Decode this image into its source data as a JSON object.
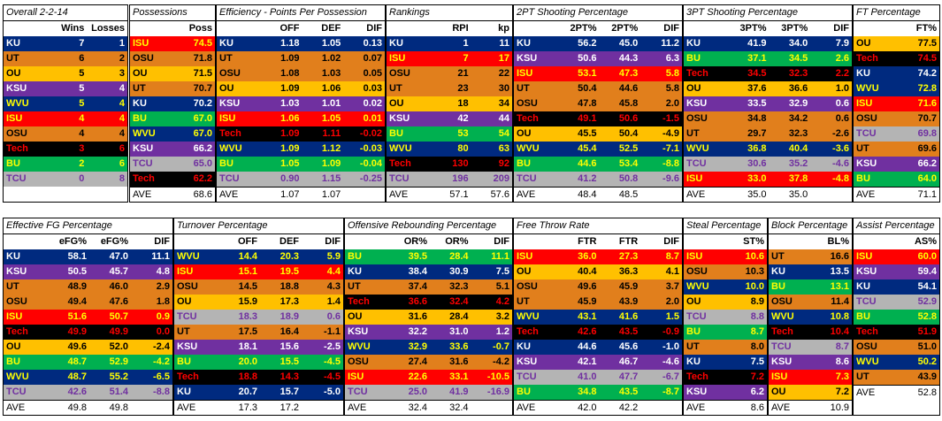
{
  "colors": {
    "KU": {
      "bg": "#002a7f",
      "fg": "#ffffff"
    },
    "UT": {
      "bg": "#e17f1c",
      "fg": "#000000"
    },
    "OU": {
      "bg": "#ffc000",
      "fg": "#000000"
    },
    "KSU": {
      "bg": "#7030a0",
      "fg": "#ffffff"
    },
    "WVU": {
      "bg": "#002a7f",
      "fg": "#ffff00"
    },
    "ISU": {
      "bg": "#ff0000",
      "fg": "#ffff00"
    },
    "OSU": {
      "bg": "#e17f1c",
      "fg": "#000000"
    },
    "Tech": {
      "bg": "#000000",
      "fg": "#ff0000"
    },
    "BU": {
      "bg": "#00b050",
      "fg": "#ffff00"
    },
    "TCU": {
      "bg": "#b4b4b4",
      "fg": "#7030a0"
    }
  },
  "tables": [
    {
      "id": "overall",
      "title": "Overall 2-2-14",
      "headers": [
        "",
        "Wins",
        "Losses"
      ],
      "rows": [
        [
          "KU",
          "7",
          "1"
        ],
        [
          "UT",
          "6",
          "2"
        ],
        [
          "OU",
          "5",
          "3"
        ],
        [
          "KSU",
          "5",
          "4"
        ],
        [
          "WVU",
          "5",
          "4"
        ],
        [
          "ISU",
          "4",
          "4"
        ],
        [
          "OSU",
          "4",
          "4"
        ],
        [
          "Tech",
          "3",
          "6"
        ],
        [
          "BU",
          "2",
          "6"
        ],
        [
          "TCU",
          "0",
          "8"
        ]
      ],
      "ave": []
    },
    {
      "id": "possessions",
      "title": "Possessions",
      "headers": [
        "",
        "Poss"
      ],
      "rows": [
        [
          "ISU",
          "74.5"
        ],
        [
          "OSU",
          "71.8"
        ],
        [
          "OU",
          "71.5"
        ],
        [
          "UT",
          "70.7"
        ],
        [
          "KU",
          "70.2"
        ],
        [
          "BU",
          "67.0"
        ],
        [
          "WVU",
          "67.0"
        ],
        [
          "KSU",
          "66.2"
        ],
        [
          "TCU",
          "65.0"
        ],
        [
          "Tech",
          "62.2"
        ]
      ],
      "ave": [
        "AVE",
        "68.6"
      ]
    },
    {
      "id": "efficiency",
      "title": "Efficiency - Points Per Possession",
      "headers": [
        "",
        "OFF",
        "DEF",
        "DIF"
      ],
      "rows": [
        [
          "KU",
          "1.18",
          "1.05",
          "0.13"
        ],
        [
          "UT",
          "1.09",
          "1.02",
          "0.07"
        ],
        [
          "OSU",
          "1.08",
          "1.03",
          "0.05"
        ],
        [
          "OU",
          "1.09",
          "1.06",
          "0.03"
        ],
        [
          "KSU",
          "1.03",
          "1.01",
          "0.02"
        ],
        [
          "ISU",
          "1.06",
          "1.05",
          "0.01"
        ],
        [
          "Tech",
          "1.09",
          "1.11",
          "-0.02"
        ],
        [
          "WVU",
          "1.09",
          "1.12",
          "-0.03"
        ],
        [
          "BU",
          "1.05",
          "1.09",
          "-0.04"
        ],
        [
          "TCU",
          "0.90",
          "1.15",
          "-0.25"
        ]
      ],
      "ave": [
        "AVE",
        "1.07",
        "1.07",
        ""
      ]
    },
    {
      "id": "rankings",
      "title": "Rankings",
      "headers": [
        "",
        "RPI",
        "kp"
      ],
      "rows": [
        [
          "KU",
          "1",
          "11"
        ],
        [
          "ISU",
          "7",
          "17"
        ],
        [
          "OSU",
          "21",
          "22"
        ],
        [
          "UT",
          "23",
          "30"
        ],
        [
          "OU",
          "18",
          "34"
        ],
        [
          "KSU",
          "42",
          "44"
        ],
        [
          "BU",
          "53",
          "54"
        ],
        [
          "WVU",
          "80",
          "63"
        ],
        [
          "Tech",
          "130",
          "92"
        ],
        [
          "TCU",
          "196",
          "209"
        ]
      ],
      "ave": [
        "AVE",
        "57.1",
        "57.6"
      ]
    },
    {
      "id": "twopt",
      "title": "2PT Shooting Percentage",
      "headers": [
        "",
        "2PT%",
        "2PT%",
        "DIF"
      ],
      "rows": [
        [
          "KU",
          "56.2",
          "45.0",
          "11.2"
        ],
        [
          "KSU",
          "50.6",
          "44.3",
          "6.3"
        ],
        [
          "ISU",
          "53.1",
          "47.3",
          "5.8"
        ],
        [
          "UT",
          "50.4",
          "44.6",
          "5.8"
        ],
        [
          "OSU",
          "47.8",
          "45.8",
          "2.0"
        ],
        [
          "Tech",
          "49.1",
          "50.6",
          "-1.5"
        ],
        [
          "OU",
          "45.5",
          "50.4",
          "-4.9"
        ],
        [
          "WVU",
          "45.4",
          "52.5",
          "-7.1"
        ],
        [
          "BU",
          "44.6",
          "53.4",
          "-8.8"
        ],
        [
          "TCU",
          "41.2",
          "50.8",
          "-9.6"
        ]
      ],
      "ave": [
        "AVE",
        "48.4",
        "48.5",
        ""
      ]
    },
    {
      "id": "threept",
      "title": "3PT Shooting Percentage",
      "headers": [
        "",
        "3PT%",
        "3PT%",
        "DIF"
      ],
      "rows": [
        [
          "KU",
          "41.9",
          "34.0",
          "7.9"
        ],
        [
          "BU",
          "37.1",
          "34.5",
          "2.6"
        ],
        [
          "Tech",
          "34.5",
          "32.3",
          "2.2"
        ],
        [
          "OU",
          "37.6",
          "36.6",
          "1.0"
        ],
        [
          "KSU",
          "33.5",
          "32.9",
          "0.6"
        ],
        [
          "OSU",
          "34.8",
          "34.2",
          "0.6"
        ],
        [
          "UT",
          "29.7",
          "32.3",
          "-2.6"
        ],
        [
          "WVU",
          "36.8",
          "40.4",
          "-3.6"
        ],
        [
          "TCU",
          "30.6",
          "35.2",
          "-4.6"
        ],
        [
          "ISU",
          "33.0",
          "37.8",
          "-4.8"
        ]
      ],
      "ave": [
        "AVE",
        "35.0",
        "35.0",
        ""
      ]
    },
    {
      "id": "ft",
      "title": "FT Percentage",
      "headers": [
        "",
        "FT%"
      ],
      "rows": [
        [
          "OU",
          "77.5"
        ],
        [
          "Tech",
          "74.5"
        ],
        [
          "KU",
          "74.2"
        ],
        [
          "WVU",
          "72.8"
        ],
        [
          "ISU",
          "71.6"
        ],
        [
          "OSU",
          "70.7"
        ],
        [
          "TCU",
          "69.8"
        ],
        [
          "UT",
          "69.6"
        ],
        [
          "KSU",
          "66.2"
        ],
        [
          "BU",
          "64.0"
        ]
      ],
      "ave": [
        "AVE",
        "71.1"
      ]
    },
    {
      "id": "efg",
      "title": "Effective FG Percentage",
      "headers": [
        "",
        "eFG%",
        "eFG%",
        "DIF"
      ],
      "rows": [
        [
          "KU",
          "58.1",
          "47.0",
          "11.1"
        ],
        [
          "KSU",
          "50.5",
          "45.7",
          "4.8"
        ],
        [
          "UT",
          "48.9",
          "46.0",
          "2.9"
        ],
        [
          "OSU",
          "49.4",
          "47.6",
          "1.8"
        ],
        [
          "ISU",
          "51.6",
          "50.7",
          "0.9"
        ],
        [
          "Tech",
          "49.9",
          "49.9",
          "0.0"
        ],
        [
          "OU",
          "49.6",
          "52.0",
          "-2.4"
        ],
        [
          "BU",
          "48.7",
          "52.9",
          "-4.2"
        ],
        [
          "WVU",
          "48.7",
          "55.2",
          "-6.5"
        ],
        [
          "TCU",
          "42.6",
          "51.4",
          "-8.8"
        ]
      ],
      "ave": [
        "AVE",
        "49.8",
        "49.8",
        ""
      ]
    },
    {
      "id": "turnover",
      "title": "Turnover Percentage",
      "headers": [
        "",
        "OFF",
        "DEF",
        "DIF"
      ],
      "rows": [
        [
          "WVU",
          "14.4",
          "20.3",
          "5.9"
        ],
        [
          "ISU",
          "15.1",
          "19.5",
          "4.4"
        ],
        [
          "OSU",
          "14.5",
          "18.8",
          "4.3"
        ],
        [
          "OU",
          "15.9",
          "17.3",
          "1.4"
        ],
        [
          "TCU",
          "18.3",
          "18.9",
          "0.6"
        ],
        [
          "UT",
          "17.5",
          "16.4",
          "-1.1"
        ],
        [
          "KSU",
          "18.1",
          "15.6",
          "-2.5"
        ],
        [
          "BU",
          "20.0",
          "15.5",
          "-4.5"
        ],
        [
          "Tech",
          "18.8",
          "14.3",
          "-4.5"
        ],
        [
          "KU",
          "20.7",
          "15.7",
          "-5.0"
        ]
      ],
      "ave": [
        "AVE",
        "17.3",
        "17.2",
        ""
      ]
    },
    {
      "id": "oreb",
      "title": "Offensive Rebounding Percentage",
      "headers": [
        "",
        "OR%",
        "OR%",
        "DIF"
      ],
      "rows": [
        [
          "BU",
          "39.5",
          "28.4",
          "11.1"
        ],
        [
          "KU",
          "38.4",
          "30.9",
          "7.5"
        ],
        [
          "UT",
          "37.4",
          "32.3",
          "5.1"
        ],
        [
          "Tech",
          "36.6",
          "32.4",
          "4.2"
        ],
        [
          "OU",
          "31.6",
          "28.4",
          "3.2"
        ],
        [
          "KSU",
          "32.2",
          "31.0",
          "1.2"
        ],
        [
          "WVU",
          "32.9",
          "33.6",
          "-0.7"
        ],
        [
          "OSU",
          "27.4",
          "31.6",
          "-4.2"
        ],
        [
          "ISU",
          "22.6",
          "33.1",
          "-10.5"
        ],
        [
          "TCU",
          "25.0",
          "41.9",
          "-16.9"
        ]
      ],
      "ave": [
        "AVE",
        "32.4",
        "32.4",
        ""
      ]
    },
    {
      "id": "ftr",
      "title": "Free Throw Rate",
      "headers": [
        "",
        "FTR",
        "FTR",
        "DIF"
      ],
      "rows": [
        [
          "ISU",
          "36.0",
          "27.3",
          "8.7"
        ],
        [
          "OU",
          "40.4",
          "36.3",
          "4.1"
        ],
        [
          "OSU",
          "49.6",
          "45.9",
          "3.7"
        ],
        [
          "UT",
          "45.9",
          "43.9",
          "2.0"
        ],
        [
          "WVU",
          "43.1",
          "41.6",
          "1.5"
        ],
        [
          "Tech",
          "42.6",
          "43.5",
          "-0.9"
        ],
        [
          "KU",
          "44.6",
          "45.6",
          "-1.0"
        ],
        [
          "KSU",
          "42.1",
          "46.7",
          "-4.6"
        ],
        [
          "TCU",
          "41.0",
          "47.7",
          "-6.7"
        ],
        [
          "BU",
          "34.8",
          "43.5",
          "-8.7"
        ]
      ],
      "ave": [
        "AVE",
        "42.0",
        "42.2",
        ""
      ]
    },
    {
      "id": "steal",
      "title": "Steal Percentage",
      "headers": [
        "",
        "ST%"
      ],
      "rows": [
        [
          "ISU",
          "10.6"
        ],
        [
          "OSU",
          "10.3"
        ],
        [
          "WVU",
          "10.0"
        ],
        [
          "OU",
          "8.9"
        ],
        [
          "TCU",
          "8.8"
        ],
        [
          "BU",
          "8.7"
        ],
        [
          "UT",
          "8.0"
        ],
        [
          "KU",
          "7.5"
        ],
        [
          "Tech",
          "7.2"
        ],
        [
          "KSU",
          "6.2"
        ]
      ],
      "ave": [
        "AVE",
        "8.6"
      ]
    },
    {
      "id": "block",
      "title": "Block Percentage",
      "headers": [
        "",
        "BL%"
      ],
      "rows": [
        [
          "UT",
          "16.6"
        ],
        [
          "KU",
          "13.5"
        ],
        [
          "BU",
          "13.1"
        ],
        [
          "OSU",
          "11.4"
        ],
        [
          "WVU",
          "10.8"
        ],
        [
          "Tech",
          "10.4"
        ],
        [
          "TCU",
          "8.7"
        ],
        [
          "KSU",
          "8.6"
        ],
        [
          "ISU",
          "7.3"
        ],
        [
          "OU",
          "7.2"
        ]
      ],
      "ave": [
        "AVE",
        "10.9"
      ]
    },
    {
      "id": "assist",
      "title": "Assist Percentage",
      "headers": [
        "",
        "AS%"
      ],
      "rows": [
        [
          "ISU",
          "60.0"
        ],
        [
          "KSU",
          "59.4"
        ],
        [
          "KU",
          "54.1"
        ],
        [
          "TCU",
          "52.9"
        ],
        [
          "BU",
          "52.8"
        ],
        [
          "Tech",
          "51.9"
        ],
        [
          "OSU",
          "51.0"
        ],
        [
          "WVU",
          "50.2"
        ],
        [
          "UT",
          "43.9"
        ]
      ],
      "ave": [
        "AVE",
        "52.8"
      ]
    }
  ]
}
